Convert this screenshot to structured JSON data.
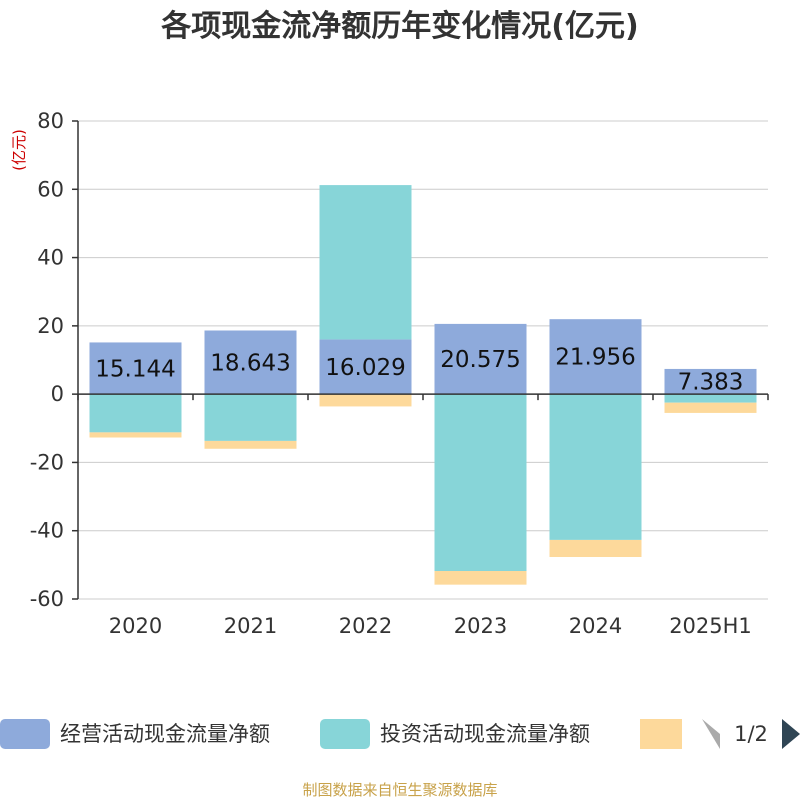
{
  "colors": {
    "operating": "#8eaadb",
    "investing": "#87d5d8",
    "financing": "#fdd99b",
    "grid": "#cccccc",
    "axis": "#333333",
    "nav_disabled": "#aaaaaa",
    "nav_active": "#2f4554"
  },
  "legend": {
    "pager_text": "1/2",
    "prev_icon": "triangle-left-icon",
    "next_icon": "triangle-right-icon"
  },
  "source_text": "制图数据来自恒生聚源数据库",
  "chart_data": {
    "type": "bar",
    "stacked": true,
    "title": "各项现金流净额历年变化情况(亿元)",
    "ylabel": "(亿元)",
    "categories": [
      "2020",
      "2021",
      "2022",
      "2023",
      "2024",
      "2025H1"
    ],
    "ylim": [
      -60,
      80
    ],
    "yticks": [
      80,
      60,
      40,
      20,
      0,
      -20,
      -40,
      -60
    ],
    "grid": true,
    "legend_position": "bottom",
    "series": [
      {
        "name": "经营活动现金流量净额",
        "color_key": "operating",
        "values": [
          15.144,
          18.643,
          16.029,
          20.575,
          21.956,
          7.383
        ],
        "labels": [
          "15.144",
          "18.643",
          "16.029",
          "20.575",
          "21.956",
          "7.383"
        ]
      },
      {
        "name": "投资活动现金流量净额",
        "color_key": "investing",
        "values": [
          -11.2,
          -13.7,
          45.2,
          -51.8,
          -42.7,
          -2.5
        ]
      },
      {
        "name": "",
        "color_key": "financing",
        "values": [
          -1.5,
          -2.3,
          -3.6,
          -4.0,
          -5.0,
          -3.0
        ]
      }
    ]
  }
}
